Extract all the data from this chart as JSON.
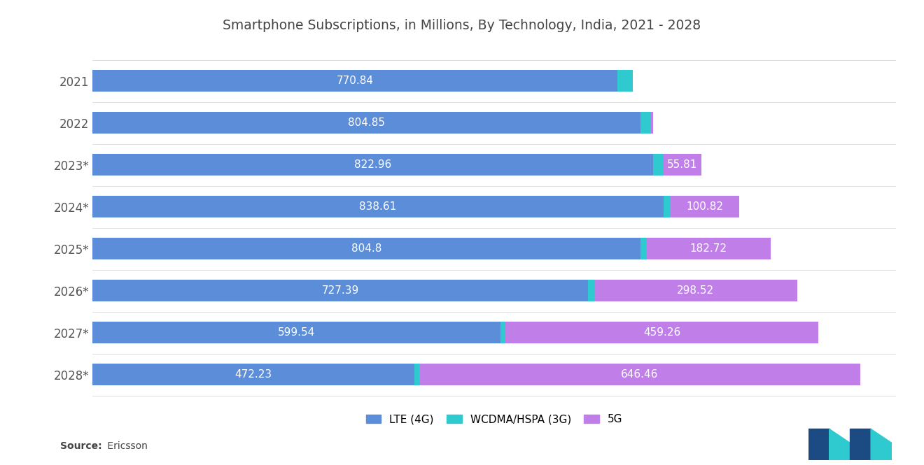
{
  "title": "Smartphone Subscriptions, in Millions, By Technology, India, 2021 - 2028",
  "years": [
    "2021",
    "2022",
    "2023*",
    "2024*",
    "2025*",
    "2026*",
    "2027*",
    "2028*"
  ],
  "lte_4g": [
    770.84,
    804.85,
    822.96,
    838.61,
    804.8,
    727.39,
    599.54,
    472.23
  ],
  "wcdma_3g": [
    22.0,
    14.0,
    15.0,
    10.0,
    8.0,
    9.0,
    7.0,
    8.0
  ],
  "fg_5g": [
    0.0,
    4.0,
    55.81,
    100.82,
    182.72,
    298.52,
    459.26,
    646.46
  ],
  "lte_label": [
    "770.84",
    "804.85",
    "822.96",
    "838.61",
    "804.8",
    "727.39",
    "599.54",
    "472.23"
  ],
  "fg_label": [
    "",
    "",
    "55.81",
    "100.82",
    "182.72",
    "298.52",
    "459.26",
    "646.46"
  ],
  "color_lte": "#5B8DD9",
  "color_wcdma": "#2ECAD0",
  "color_5g": "#C07FE8",
  "bg_color": "#FFFFFF",
  "legend_labels": [
    "LTE (4G)",
    "WCDMA/HSPA (3G)",
    "5G"
  ],
  "xlim": 1180
}
